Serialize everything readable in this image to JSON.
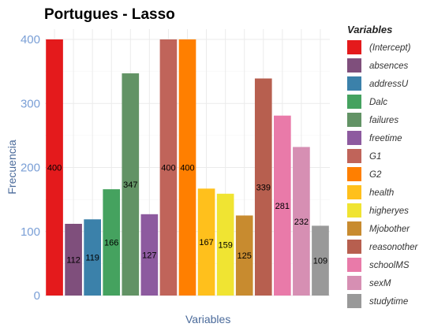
{
  "chart_data": {
    "type": "bar",
    "title": "Portugues - Lasso",
    "xlabel": "Variables",
    "ylabel": "Frecuencia",
    "ylim": [
      0,
      400
    ],
    "yticks": [
      0,
      100,
      200,
      300,
      400
    ],
    "grid": true,
    "legend": {
      "title": "Variables",
      "position": "right"
    },
    "categories": [
      "(Intercept)",
      "absences",
      "addressU",
      "Dalc",
      "failures",
      "freetime",
      "G1",
      "G2",
      "health",
      "higheryes",
      "Mjobother",
      "reasonother",
      "schoolMS",
      "sexM",
      "studytime"
    ],
    "values": [
      400,
      112,
      119,
      166,
      347,
      127,
      400,
      400,
      167,
      159,
      125,
      339,
      281,
      232,
      109
    ],
    "colors": [
      "#e41a1c",
      "#7f4f7c",
      "#3b81aa",
      "#45a25f",
      "#629365",
      "#8d5a9f",
      "#c0645a",
      "#ff7f00",
      "#ffc01c",
      "#f0e432",
      "#c88b2f",
      "#b75f4f",
      "#e97aa9",
      "#d68fb3",
      "#999999"
    ]
  }
}
